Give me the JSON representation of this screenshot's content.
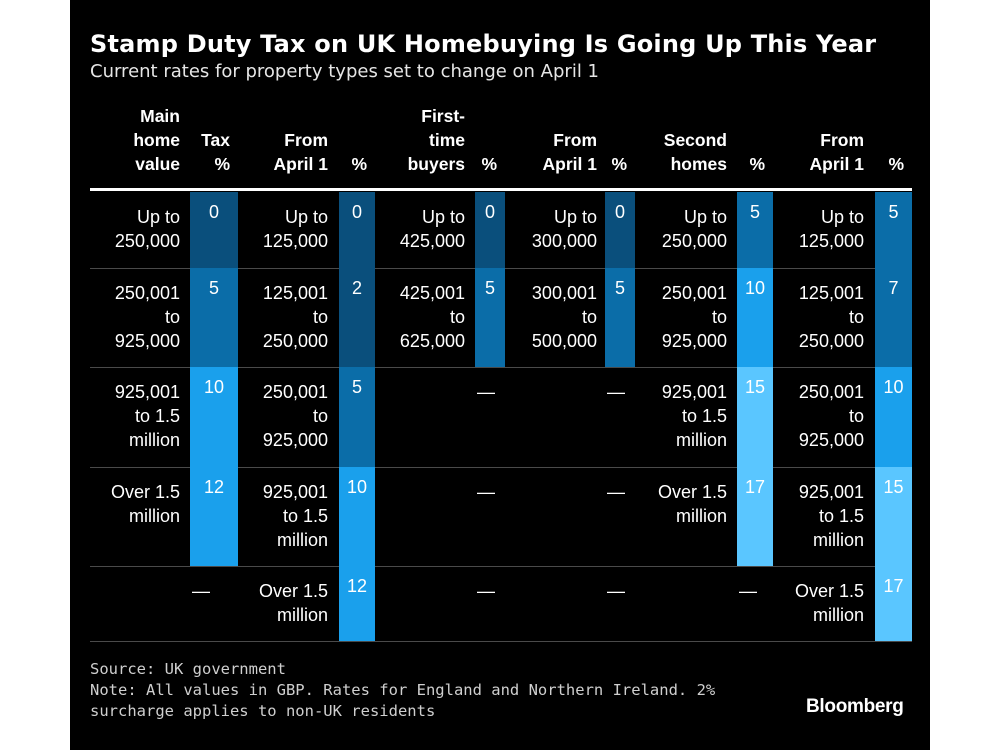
{
  "title": "Stamp Duty Tax on UK Homebuying Is Going Up This Year",
  "subtitle": "Current rates for property types set to change on April 1",
  "source": "Source: UK government",
  "note": "Note: All values in GBP. Rates for England and Northern Ireland. 2% surcharge applies to non-UK residents",
  "logo": "Bloomberg",
  "dash": "—",
  "colors": {
    "background": "#000000",
    "pct_0": "#0a4f7c",
    "pct_2": "#0a4f7c",
    "pct_5": "#0b6da8",
    "pct_7": "#0b6da8",
    "pct_10": "#1aa0ec",
    "pct_12": "#1aa0ec",
    "pct_15": "#5ac6ff",
    "pct_17": "#5ac6ff"
  },
  "chart_data": {
    "type": "table",
    "columns": [
      {
        "band_header": "Main\nhome\nvalue",
        "pct_header": "Tax\n%"
      },
      {
        "band_header": "From\nApril 1",
        "pct_header": "%"
      },
      {
        "band_header": "First-\ntime\nbuyers",
        "pct_header": "%"
      },
      {
        "band_header": "From\nApril 1",
        "pct_header": "%"
      },
      {
        "band_header": "Second\nhomes",
        "pct_header": "%"
      },
      {
        "band_header": "From\nApril 1",
        "pct_header": "%"
      }
    ],
    "rows": [
      [
        {
          "band": "Up to\n250,000",
          "pct": 0
        },
        {
          "band": "Up to\n125,000",
          "pct": 0
        },
        {
          "band": "Up to\n425,000",
          "pct": 0
        },
        {
          "band": "Up to\n300,000",
          "pct": 0
        },
        {
          "band": "Up to\n250,000",
          "pct": 5
        },
        {
          "band": "Up to\n125,000",
          "pct": 5
        }
      ],
      [
        {
          "band": "250,001\nto\n925,000",
          "pct": 5
        },
        {
          "band": "125,001\nto\n250,000",
          "pct": 2
        },
        {
          "band": "425,001\nto\n625,000",
          "pct": 5
        },
        {
          "band": "300,001\nto\n500,000",
          "pct": 5
        },
        {
          "band": "250,001\nto\n925,000",
          "pct": 10
        },
        {
          "band": "125,001\nto\n250,000",
          "pct": 7
        }
      ],
      [
        {
          "band": "925,001\nto 1.5\nmillion",
          "pct": 10
        },
        {
          "band": "250,001\nto\n925,000",
          "pct": 5
        },
        {
          "band": null,
          "pct": null
        },
        {
          "band": null,
          "pct": null
        },
        {
          "band": "925,001\nto 1.5\nmillion",
          "pct": 15
        },
        {
          "band": "250,001\nto\n925,000",
          "pct": 10
        }
      ],
      [
        {
          "band": "Over 1.5\nmillion",
          "pct": 12
        },
        {
          "band": "925,001\nto 1.5\nmillion",
          "pct": 10
        },
        {
          "band": null,
          "pct": null
        },
        {
          "band": null,
          "pct": null
        },
        {
          "band": "Over 1.5\nmillion",
          "pct": 17
        },
        {
          "band": "925,001\nto 1.5\nmillion",
          "pct": 15
        }
      ],
      [
        {
          "band": null,
          "pct": null
        },
        {
          "band": "Over 1.5\nmillion",
          "pct": 12
        },
        {
          "band": null,
          "pct": null
        },
        {
          "band": null,
          "pct": null
        },
        {
          "band": null,
          "pct": null
        },
        {
          "band": "Over 1.5\nmillion",
          "pct": 17
        }
      ]
    ]
  }
}
